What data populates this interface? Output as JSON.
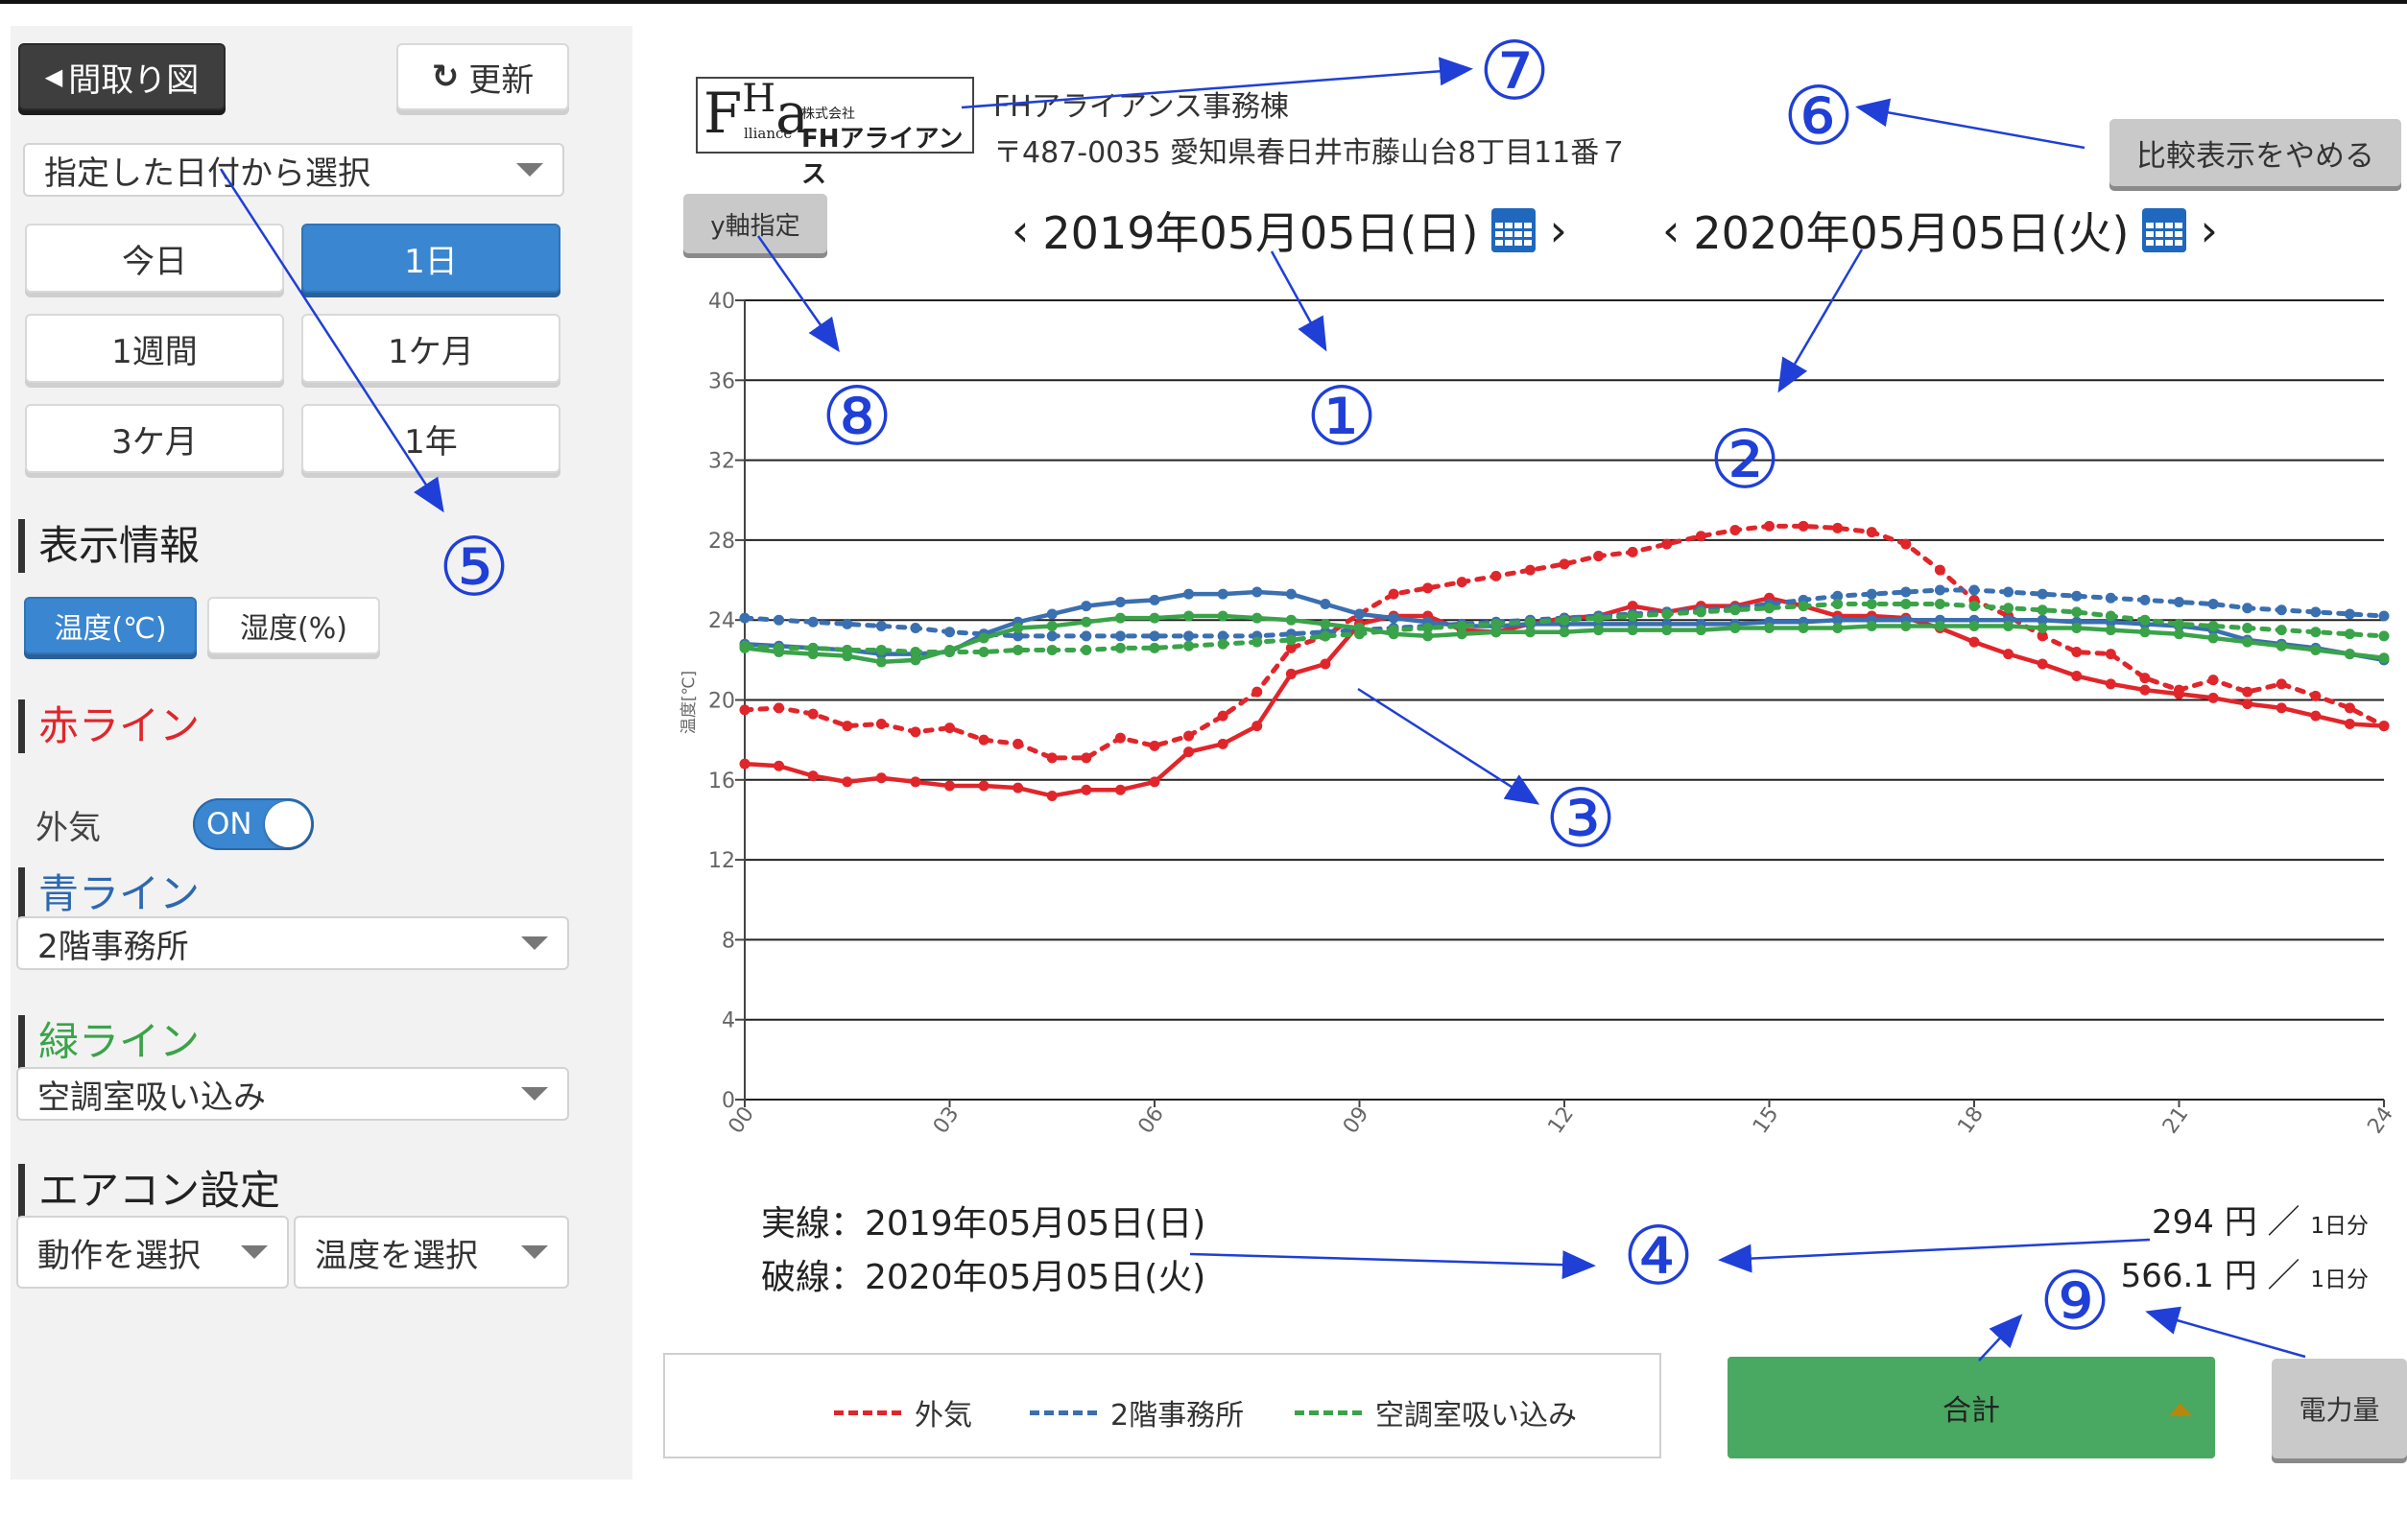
{
  "sidebar": {
    "floorplan_button": "間取り図",
    "refresh_button": "更新",
    "date_select": "指定した日付から選択",
    "period_buttons": [
      "今日",
      "1日",
      "1週間",
      "1ケ月",
      "3ケ月",
      "1年"
    ],
    "active_period": "1日",
    "display_info_heading": "表示情報",
    "temp_button": "温度(℃)",
    "humidity_button": "湿度(%)",
    "red_line_heading": "赤ライン",
    "red_line_label": "外気",
    "red_toggle_label": "ON",
    "blue_line_heading": "青ライン",
    "blue_line_select": "2階事務所",
    "green_line_heading": "緑ライン",
    "green_line_select": "空調室吸い込み",
    "aircon_heading": "エアコン設定",
    "action_select": "動作を選択",
    "temperature_select": "温度を選択"
  },
  "header": {
    "logo_text": "FHアライアンス",
    "logo_small": "株式会社",
    "logo_sub": "lliance",
    "company_name": "FHアライアンス事務棟",
    "address": "〒487-0035 愛知県春日井市藤山台8丁目11番７",
    "compare_off_button": "比較表示をやめる",
    "y_axis_button": "y軸指定",
    "date1": "2019年05月05日(日)",
    "date2": "2020年05月05日(火)",
    "prev_arrow": "‹",
    "next_arrow": "›"
  },
  "footer": {
    "solid_label": "実線：2019年05月05日(日)",
    "dashed_label": "破線：2020年05月05日(火)",
    "cost1_value": "294 円 ／",
    "cost1_unit": "1日分",
    "cost2_value": "566.1 円 ／",
    "cost2_unit": "1日分",
    "total_button": "合計",
    "power_button": "電力量"
  },
  "legend": [
    "外気",
    "2階事務所",
    "空調室吸い込み"
  ],
  "annotations": [
    "①",
    "②",
    "③",
    "④",
    "⑤",
    "⑥",
    "⑦",
    "⑧",
    "⑨"
  ],
  "colors": {
    "red": "#e0262b",
    "blue": "#3a6fb0",
    "green": "#3aa349",
    "accent": "#3a86d0",
    "annotation": "#1f3fd6"
  },
  "chart_data": {
    "type": "line",
    "ylabel": "温度[℃]",
    "ylim": [
      0,
      40
    ],
    "yticks": [
      "0",
      "4",
      "8",
      "12",
      "16",
      "20",
      "24",
      "28",
      "32",
      "36",
      "40"
    ],
    "xlim": [
      0,
      24
    ],
    "xticks": [
      "00",
      "03",
      "06",
      "09",
      "12",
      "15",
      "18",
      "21",
      "24"
    ],
    "grid": true,
    "series": [
      {
        "name": "外気",
        "style": "solid",
        "color": "#e0262b",
        "x": [
          0,
          0.5,
          1,
          1.5,
          2,
          2.5,
          3,
          3.5,
          4,
          4.5,
          5,
          5.5,
          6,
          6.5,
          7,
          7.5,
          8,
          8.5,
          9,
          9.5,
          10,
          10.5,
          11,
          11.5,
          12,
          12.5,
          13,
          13.5,
          14,
          14.5,
          15,
          15.5,
          16,
          16.5,
          17,
          17.5,
          18,
          18.5,
          19,
          19.5,
          20,
          20.5,
          21,
          21.5,
          22,
          22.5,
          23,
          23.5,
          24
        ],
        "values": [
          16.8,
          16.7,
          16.2,
          15.9,
          16.1,
          15.9,
          15.7,
          15.7,
          15.6,
          15.2,
          15.5,
          15.5,
          15.9,
          17.4,
          17.8,
          18.7,
          21.3,
          21.8,
          23.8,
          24.2,
          24.2,
          23.5,
          23.4,
          23.8,
          24.1,
          24.2,
          24.7,
          24.4,
          24.7,
          24.7,
          25.1,
          24.7,
          24.2,
          24.2,
          24.1,
          23.6,
          22.9,
          22.3,
          21.8,
          21.2,
          20.8,
          20.5,
          20.3,
          20.1,
          19.8,
          19.6,
          19.2,
          18.8,
          18.7
        ]
      },
      {
        "name": "外気",
        "style": "dashed",
        "color": "#e0262b",
        "x": [
          0,
          0.5,
          1,
          1.5,
          2,
          2.5,
          3,
          3.5,
          4,
          4.5,
          5,
          5.5,
          6,
          6.5,
          7,
          7.5,
          8,
          8.5,
          9,
          9.5,
          10,
          10.5,
          11,
          11.5,
          12,
          12.5,
          13,
          13.5,
          14,
          14.5,
          15,
          15.5,
          16,
          16.5,
          17,
          17.5,
          18,
          18.5,
          19,
          19.5,
          20,
          20.5,
          21,
          21.5,
          22,
          22.5,
          23,
          23.5,
          24
        ],
        "values": [
          19.5,
          19.6,
          19.3,
          18.7,
          18.8,
          18.4,
          18.6,
          18.0,
          17.8,
          17.1,
          17.1,
          18.1,
          17.7,
          18.2,
          19.2,
          20.4,
          22.6,
          23.2,
          24.3,
          25.3,
          25.6,
          25.9,
          26.2,
          26.5,
          26.8,
          27.2,
          27.4,
          27.8,
          28.2,
          28.5,
          28.7,
          28.7,
          28.6,
          28.4,
          27.8,
          26.5,
          25.0,
          24.2,
          23.2,
          22.4,
          22.3,
          21.1,
          20.5,
          21.0,
          20.4,
          20.8,
          20.2,
          19.6,
          18.7
        ]
      },
      {
        "name": "2階事務所",
        "style": "solid",
        "color": "#3a6fb0",
        "x": [
          0,
          0.5,
          1,
          1.5,
          2,
          2.5,
          3,
          3.5,
          4,
          4.5,
          5,
          5.5,
          6,
          6.5,
          7,
          7.5,
          8,
          8.5,
          9,
          9.5,
          10,
          10.5,
          11,
          11.5,
          12,
          12.5,
          13,
          13.5,
          14,
          14.5,
          15,
          15.5,
          16,
          16.5,
          17,
          17.5,
          18,
          18.5,
          19,
          19.5,
          20,
          20.5,
          21,
          21.5,
          22,
          22.5,
          23,
          23.5,
          24
        ],
        "values": [
          22.8,
          22.7,
          22.6,
          22.5,
          22.3,
          22.3,
          22.4,
          23.3,
          23.9,
          24.3,
          24.7,
          24.9,
          25.0,
          25.3,
          25.3,
          25.4,
          25.3,
          24.8,
          24.3,
          24.1,
          23.9,
          23.7,
          23.7,
          23.8,
          23.8,
          23.8,
          23.8,
          23.8,
          23.8,
          23.8,
          23.9,
          23.9,
          24.0,
          24.0,
          24.0,
          24.0,
          24.0,
          24.0,
          24.0,
          23.9,
          23.9,
          23.8,
          23.7,
          23.5,
          23.0,
          22.8,
          22.6,
          22.3,
          22.0
        ]
      },
      {
        "name": "2階事務所",
        "style": "dashed",
        "color": "#3a6fb0",
        "x": [
          0,
          0.5,
          1,
          1.5,
          2,
          2.5,
          3,
          3.5,
          4,
          4.5,
          5,
          5.5,
          6,
          6.5,
          7,
          7.5,
          8,
          8.5,
          9,
          9.5,
          10,
          10.5,
          11,
          11.5,
          12,
          12.5,
          13,
          13.5,
          14,
          14.5,
          15,
          15.5,
          16,
          16.5,
          17,
          17.5,
          18,
          18.5,
          19,
          19.5,
          20,
          20.5,
          21,
          21.5,
          22,
          22.5,
          23,
          23.5,
          24
        ],
        "values": [
          24.1,
          24.0,
          23.9,
          23.8,
          23.7,
          23.6,
          23.4,
          23.3,
          23.2,
          23.2,
          23.2,
          23.2,
          23.2,
          23.2,
          23.2,
          23.2,
          23.3,
          23.4,
          23.5,
          23.6,
          23.7,
          23.8,
          23.9,
          24.0,
          24.1,
          24.2,
          24.3,
          24.4,
          24.5,
          24.6,
          24.8,
          25.0,
          25.2,
          25.3,
          25.4,
          25.5,
          25.5,
          25.4,
          25.3,
          25.2,
          25.1,
          25.0,
          24.9,
          24.8,
          24.6,
          24.5,
          24.4,
          24.3,
          24.2
        ]
      },
      {
        "name": "空調室吸い込み",
        "style": "solid",
        "color": "#3aa349",
        "x": [
          0,
          0.5,
          1,
          1.5,
          2,
          2.5,
          3,
          3.5,
          4,
          4.5,
          5,
          5.5,
          6,
          6.5,
          7,
          7.5,
          8,
          8.5,
          9,
          9.5,
          10,
          10.5,
          11,
          11.5,
          12,
          12.5,
          13,
          13.5,
          14,
          14.5,
          15,
          15.5,
          16,
          16.5,
          17,
          17.5,
          18,
          18.5,
          19,
          19.5,
          20,
          20.5,
          21,
          21.5,
          22,
          22.5,
          23,
          23.5,
          24
        ],
        "values": [
          22.6,
          22.4,
          22.3,
          22.2,
          21.9,
          22.0,
          22.5,
          23.1,
          23.6,
          23.7,
          23.9,
          24.1,
          24.1,
          24.2,
          24.2,
          24.1,
          24.0,
          23.8,
          23.6,
          23.3,
          23.2,
          23.3,
          23.4,
          23.4,
          23.4,
          23.5,
          23.5,
          23.5,
          23.5,
          23.6,
          23.6,
          23.6,
          23.6,
          23.7,
          23.7,
          23.7,
          23.7,
          23.7,
          23.6,
          23.6,
          23.5,
          23.4,
          23.3,
          23.1,
          22.9,
          22.7,
          22.5,
          22.3,
          22.1
        ]
      },
      {
        "name": "空調室吸い込み",
        "style": "dashed",
        "color": "#3aa349",
        "x": [
          0,
          0.5,
          1,
          1.5,
          2,
          2.5,
          3,
          3.5,
          4,
          4.5,
          5,
          5.5,
          6,
          6.5,
          7,
          7.5,
          8,
          8.5,
          9,
          9.5,
          10,
          10.5,
          11,
          11.5,
          12,
          12.5,
          13,
          13.5,
          14,
          14.5,
          15,
          15.5,
          16,
          16.5,
          17,
          17.5,
          18,
          18.5,
          19,
          19.5,
          20,
          20.5,
          21,
          21.5,
          22,
          22.5,
          23,
          23.5,
          24
        ],
        "values": [
          22.7,
          22.6,
          22.6,
          22.5,
          22.5,
          22.4,
          22.4,
          22.4,
          22.5,
          22.5,
          22.5,
          22.6,
          22.6,
          22.7,
          22.8,
          22.9,
          23.0,
          23.2,
          23.3,
          23.5,
          23.6,
          23.7,
          23.8,
          23.9,
          24.0,
          24.1,
          24.2,
          24.3,
          24.4,
          24.5,
          24.6,
          24.7,
          24.8,
          24.8,
          24.8,
          24.8,
          24.7,
          24.6,
          24.5,
          24.4,
          24.2,
          24.0,
          23.8,
          23.7,
          23.6,
          23.5,
          23.4,
          23.3,
          23.2
        ]
      }
    ]
  }
}
